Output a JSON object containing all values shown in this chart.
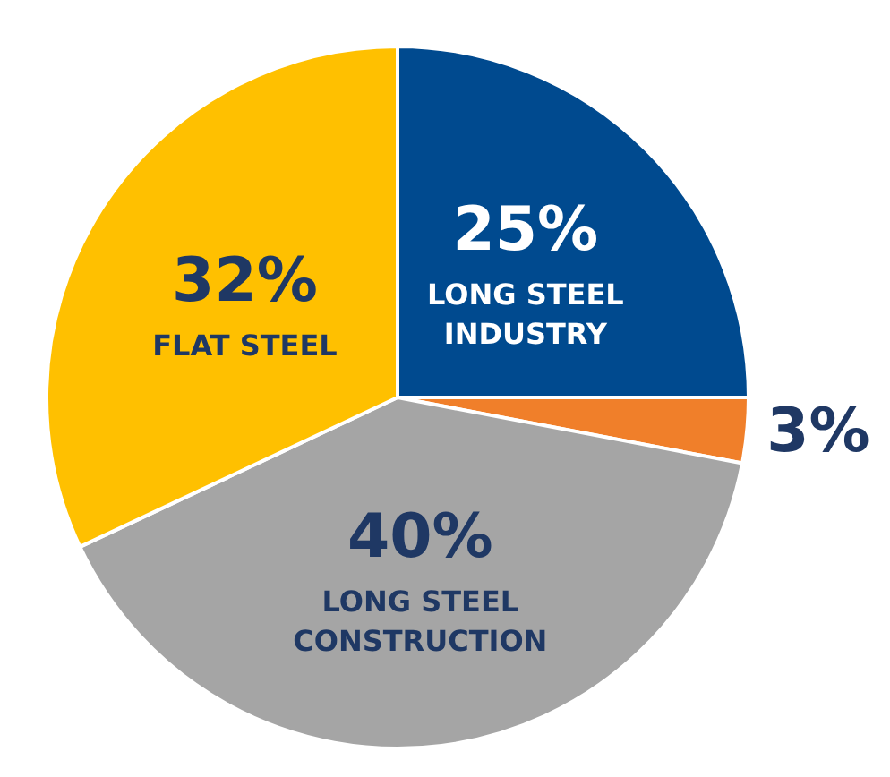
{
  "chart_data": {
    "type": "pie",
    "categories": [
      "LONG STEEL INDUSTRY",
      null,
      "LONG STEEL CONSTRUCTION",
      "FLAT STEEL"
    ],
    "values": [
      25,
      3,
      40,
      32
    ],
    "value_labels": [
      "25%",
      "3%",
      "40%",
      "32%"
    ],
    "colors": [
      "#004a8f",
      "#f07f2a",
      "#a5a5a5",
      "#ffc000"
    ],
    "legend": false
  }
}
